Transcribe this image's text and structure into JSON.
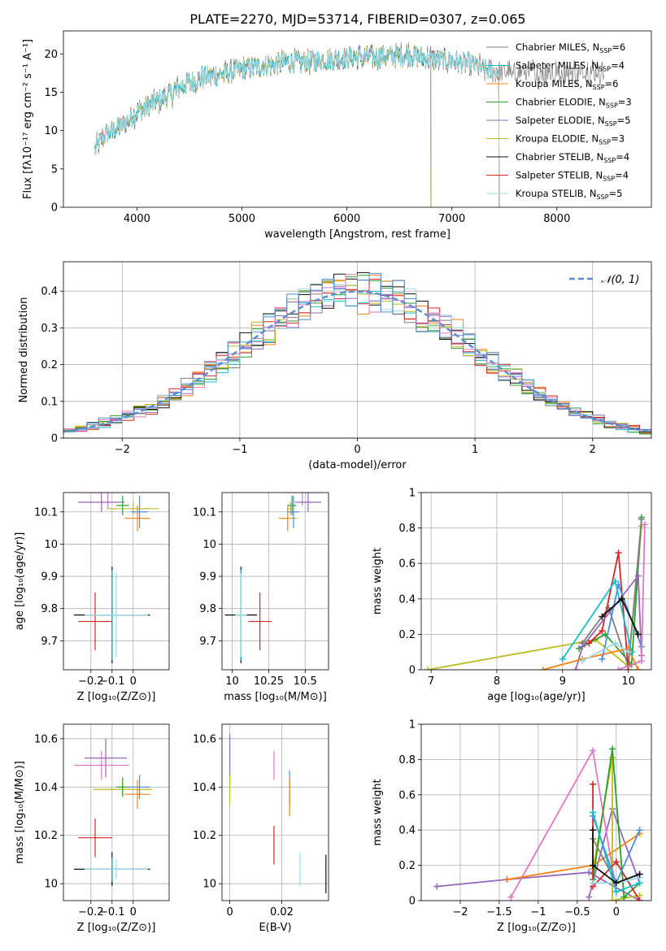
{
  "figure_title": "PLATE=2270, MJD=53714, FIBERID=0307, z=0.065",
  "colors": {
    "c_MILES": "#7f7f7f",
    "s_MILES": "#17becf",
    "k_MILES": "#ff7f0e",
    "c_ELODIE": "#2ca02c",
    "s_ELODIE": "#9467bd",
    "k_ELODIE": "#bcbd22",
    "c_STELIB": "#111111",
    "s_STELIB": "#d62728",
    "k_STELIB": "#9edae5",
    "pink": "#e377c2",
    "blue": "#4a90d9",
    "gaussian": "#5b8bd0"
  },
  "chart_data": [
    {
      "id": "spectrum",
      "type": "line",
      "xlabel": "wavelength [Angstrom, rest frame]",
      "ylabel": "Flux [fλ10⁻¹⁷ erg cm⁻² s⁻¹ A⁻¹]",
      "xlim": [
        3300,
        8900
      ],
      "ylim": [
        0,
        23
      ],
      "xticks": [
        4000,
        5000,
        6000,
        7000,
        8000
      ],
      "yticks": [
        0,
        5,
        10,
        15,
        20
      ],
      "grid": false,
      "legend_position": "lower-right",
      "continuum_x": [
        3600,
        3700,
        3850,
        4000,
        4150,
        4300,
        4450,
        4600,
        4800,
        5000,
        5200,
        5400,
        5600,
        5800,
        6000,
        6200,
        6400,
        6600,
        6800,
        7000,
        7200,
        7400
      ],
      "continuum_y": [
        7.5,
        9.5,
        10.5,
        12.5,
        13.5,
        14.5,
        16.0,
        16.8,
        17.3,
        18.0,
        18.4,
        18.8,
        19.0,
        19.3,
        19.5,
        19.6,
        19.7,
        19.8,
        19.4,
        19.0,
        18.5,
        17.6
      ],
      "series": [
        {
          "name": "Chabrier MILES, N$_{SSP}$=6",
          "label_main": "Chabrier MILES, N",
          "label_sub": "SSP",
          "label_tail": "=6",
          "color_key": "c_MILES",
          "x_end": 8450
        },
        {
          "name": "Salpeter MILES, N$_{SSP}$=4",
          "label_main": "Salpeter MILES, N",
          "label_sub": "SSP",
          "label_tail": "=4",
          "color_key": "s_MILES",
          "x_end": 7450
        },
        {
          "name": "Kroupa MILES, N$_{SSP}$=6",
          "label_main": "Kroupa MILES, N",
          "label_sub": "SSP",
          "label_tail": "=6",
          "color_key": "k_MILES",
          "x_end": 7450
        },
        {
          "name": "Chabrier ELODIE, N$_{SSP}$=3",
          "label_main": "Chabrier ELODIE, N",
          "label_sub": "SSP",
          "label_tail": "=3",
          "color_key": "c_ELODIE",
          "x_end": 6800
        },
        {
          "name": "Salpeter ELODIE, N$_{SSP}$=5",
          "label_main": "Salpeter ELODIE, N",
          "label_sub": "SSP",
          "label_tail": "=5",
          "color_key": "s_ELODIE",
          "x_end": 6800
        },
        {
          "name": "Kroupa ELODIE, N$_{SSP}$=3",
          "label_main": "Kroupa ELODIE, N",
          "label_sub": "SSP",
          "label_tail": "=3",
          "color_key": "k_ELODIE",
          "x_end": 6800
        },
        {
          "name": "Chabrier STELIB, N$_{SSP}$=4",
          "label_main": "Chabrier STELIB, N",
          "label_sub": "SSP",
          "label_tail": "=4",
          "color_key": "c_STELIB",
          "x_end": 7450
        },
        {
          "name": "Salpeter STELIB, N$_{SSP}$=4",
          "label_main": "Salpeter STELIB, N",
          "label_sub": "SSP",
          "label_tail": "=4",
          "color_key": "s_STELIB",
          "x_end": 7450
        },
        {
          "name": "Kroupa STELIB, N$_{SSP}$=5",
          "label_main": "Kroupa STELIB, N",
          "label_sub": "SSP",
          "label_tail": "=5",
          "color_key": "k_STELIB",
          "x_end": 7450
        }
      ]
    },
    {
      "id": "residuals",
      "type": "histogram",
      "xlabel": "(data-model)/error",
      "ylabel": "Normed distribution",
      "xlim": [
        -2.5,
        2.5
      ],
      "ylim": [
        0,
        0.48
      ],
      "xticks": [
        -2,
        -1,
        0,
        1,
        2
      ],
      "yticks": [
        0.0,
        0.1,
        0.2,
        0.3,
        0.4
      ],
      "grid": true,
      "legend_position": "upper-right",
      "gaussian_label": "𝒩(0, 1)",
      "bin_width": 0.1,
      "series_colors": [
        "c_MILES",
        "s_MILES",
        "k_MILES",
        "c_ELODIE",
        "s_ELODIE",
        "k_ELODIE",
        "c_STELIB",
        "s_STELIB",
        "k_STELIB",
        "pink",
        "blue"
      ]
    },
    {
      "id": "age_vs_Z",
      "type": "scatter",
      "xlabel": "Z [log₁₀(Z/Z⊙)]",
      "ylabel": "age  [log₁₀(age/yr)]",
      "xlim": [
        -0.33,
        0.17
      ],
      "ylim": [
        9.61,
        10.16
      ],
      "xticks": [
        -0.2,
        -0.1,
        0.0
      ],
      "yticks": [
        9.7,
        9.8,
        9.9,
        10.0,
        10.1
      ],
      "grid": true,
      "points": [
        {
          "color_key": "pink",
          "x": -0.12,
          "y": 10.16,
          "xerr": 0.14,
          "yerr": 0.05
        },
        {
          "color_key": "s_ELODIE",
          "x": -0.15,
          "y": 10.13,
          "xerr": 0.11,
          "yerr": 0.03
        },
        {
          "color_key": "k_ELODIE",
          "x": 0.0,
          "y": 10.11,
          "xerr": 0.12,
          "yerr": 0.02
        },
        {
          "color_key": "c_ELODIE",
          "x": -0.05,
          "y": 10.12,
          "xerr": 0.03,
          "yerr": 0.03
        },
        {
          "color_key": "k_MILES",
          "x": 0.02,
          "y": 10.08,
          "xerr": 0.06,
          "yerr": 0.04
        },
        {
          "color_key": "blue",
          "x": 0.03,
          "y": 10.1,
          "xerr": 0.04,
          "yerr": 0.05
        },
        {
          "color_key": "c_STELIB",
          "x": -0.1,
          "y": 9.78,
          "xerr": 0.18,
          "yerr": 0.15
        },
        {
          "color_key": "s_STELIB",
          "x": -0.18,
          "y": 9.76,
          "xerr": 0.08,
          "yerr": 0.09
        },
        {
          "color_key": "s_MILES",
          "x": -0.1,
          "y": 9.78,
          "xerr": 0.08,
          "yerr": 0.14
        },
        {
          "color_key": "k_STELIB",
          "x": -0.08,
          "y": 9.78,
          "xerr": 0.15,
          "yerr": 0.13
        }
      ]
    },
    {
      "id": "age_vs_mass",
      "type": "scatter",
      "xlabel": "mass [log₁₀(M/M⊙)]",
      "ylabel": "",
      "xlim": [
        9.93,
        10.66
      ],
      "ylim": [
        9.61,
        10.16
      ],
      "xticks": [
        10.0,
        10.25,
        10.5
      ],
      "yticks": [
        9.7,
        9.8,
        9.9,
        10.0,
        10.1
      ],
      "grid": true,
      "points": [
        {
          "color_key": "pink",
          "x": 10.48,
          "y": 10.16,
          "xerr": 0.12,
          "yerr": 0.04
        },
        {
          "color_key": "s_ELODIE",
          "x": 10.52,
          "y": 10.13,
          "xerr": 0.09,
          "yerr": 0.03
        },
        {
          "color_key": "c_ELODIE",
          "x": 10.41,
          "y": 10.12,
          "xerr": 0.03,
          "yerr": 0.03
        },
        {
          "color_key": "k_MILES",
          "x": 10.38,
          "y": 10.08,
          "xerr": 0.06,
          "yerr": 0.04
        },
        {
          "color_key": "blue",
          "x": 10.42,
          "y": 10.1,
          "xerr": 0.04,
          "yerr": 0.05
        },
        {
          "color_key": "k_ELODIE",
          "x": 10.4,
          "y": 10.11,
          "xerr": 0.02,
          "yerr": 0.02
        },
        {
          "color_key": "c_STELIB",
          "x": 10.06,
          "y": 9.78,
          "xerr": 0.11,
          "yerr": 0.15
        },
        {
          "color_key": "s_STELIB",
          "x": 10.19,
          "y": 9.76,
          "xerr": 0.08,
          "yerr": 0.09
        },
        {
          "color_key": "s_MILES",
          "x": 10.06,
          "y": 9.78,
          "xerr": 0.03,
          "yerr": 0.14
        },
        {
          "color_key": "k_STELIB",
          "x": 10.06,
          "y": 9.78,
          "xerr": 0.04,
          "yerr": 0.13
        }
      ]
    },
    {
      "id": "weight_vs_age",
      "type": "line",
      "xlabel": "age  [log₁₀(age/yr)]",
      "ylabel": "mass weight",
      "xlim": [
        6.85,
        10.35
      ],
      "ylim": [
        0,
        1
      ],
      "xticks": [
        7,
        8,
        9,
        10
      ],
      "yticks": [
        0.0,
        0.2,
        0.4,
        0.6,
        0.8,
        1.0
      ],
      "grid": true,
      "series": [
        {
          "color_key": "k_ELODIE",
          "x": [
            6.95,
            9.5,
            10.0,
            10.2
          ],
          "y": [
            0.0,
            0.17,
            0.02,
            0.81
          ]
        },
        {
          "color_key": "c_ELODIE",
          "x": [
            9.25,
            9.65,
            10.05,
            10.2
          ],
          "y": [
            0.12,
            0.2,
            0.03,
            0.86
          ]
        },
        {
          "color_key": "c_MILES",
          "x": [
            9.3,
            9.7,
            10.0,
            10.2
          ],
          "y": [
            0.15,
            0.35,
            0.02,
            0.85
          ]
        },
        {
          "color_key": "s_STELIB",
          "x": [
            9.4,
            9.6,
            9.85,
            10.0
          ],
          "y": [
            0.15,
            0.22,
            0.66,
            0.0
          ]
        },
        {
          "color_key": "s_ELODIE",
          "x": [
            9.2,
            9.3,
            10.15,
            10.2
          ],
          "y": [
            0.0,
            0.13,
            0.53,
            0.08
          ]
        },
        {
          "color_key": "k_MILES",
          "x": [
            8.7,
            9.3,
            10.0,
            10.15
          ],
          "y": [
            0.0,
            0.06,
            0.12,
            0.0
          ]
        },
        {
          "color_key": "blue",
          "x": [
            9.6,
            9.85,
            10.2
          ],
          "y": [
            0.06,
            0.48,
            0.13
          ]
        },
        {
          "color_key": "s_MILES",
          "x": [
            9.0,
            9.8,
            10.05
          ],
          "y": [
            0.06,
            0.5,
            0.1
          ]
        },
        {
          "color_key": "k_STELIB",
          "x": [
            9.3,
            9.8,
            10.0
          ],
          "y": [
            0.05,
            0.15,
            0.1
          ]
        },
        {
          "color_key": "pink",
          "x": [
            9.85,
            10.2,
            10.25
          ],
          "y": [
            0.0,
            0.05,
            0.82
          ]
        },
        {
          "color_key": "c_STELIB",
          "x": [
            9.6,
            9.9,
            10.15
          ],
          "y": [
            0.3,
            0.4,
            0.2
          ]
        }
      ]
    },
    {
      "id": "mass_vs_Z",
      "type": "scatter",
      "xlabel": "Z [log₁₀(Z/Z⊙)]",
      "ylabel": "mass [log₁₀(M/M⊙)]",
      "xlim": [
        -0.33,
        0.17
      ],
      "ylim": [
        9.93,
        10.66
      ],
      "xticks": [
        -0.2,
        -0.1,
        0.0
      ],
      "yticks": [
        10.0,
        10.2,
        10.4,
        10.6
      ],
      "grid": true,
      "points": [
        {
          "color_key": "s_ELODIE",
          "x": -0.13,
          "y": 10.52,
          "xerr": 0.1,
          "yerr": 0.08
        },
        {
          "color_key": "pink",
          "x": -0.15,
          "y": 10.49,
          "xerr": 0.13,
          "yerr": 0.06
        },
        {
          "color_key": "k_ELODIE",
          "x": -0.05,
          "y": 10.39,
          "xerr": 0.14,
          "yerr": 0.03
        },
        {
          "color_key": "c_ELODIE",
          "x": -0.05,
          "y": 10.4,
          "xerr": 0.03,
          "yerr": 0.04
        },
        {
          "color_key": "k_MILES",
          "x": 0.02,
          "y": 10.37,
          "xerr": 0.06,
          "yerr": 0.06
        },
        {
          "color_key": "blue",
          "x": 0.03,
          "y": 10.4,
          "xerr": 0.05,
          "yerr": 0.05
        },
        {
          "color_key": "s_STELIB",
          "x": -0.18,
          "y": 10.19,
          "xerr": 0.08,
          "yerr": 0.08
        },
        {
          "color_key": "c_STELIB",
          "x": -0.1,
          "y": 10.06,
          "xerr": 0.18,
          "yerr": 0.07
        },
        {
          "color_key": "s_MILES",
          "x": -0.1,
          "y": 10.06,
          "xerr": 0.08,
          "yerr": 0.05
        },
        {
          "color_key": "k_STELIB",
          "x": -0.08,
          "y": 10.06,
          "xerr": 0.15,
          "yerr": 0.04
        }
      ]
    },
    {
      "id": "mass_vs_EBV",
      "type": "scatter",
      "xlabel": "E(B-V)",
      "ylabel": "",
      "xlim": [
        -0.003,
        0.038
      ],
      "ylim": [
        9.93,
        10.66
      ],
      "xticks": [
        0.0,
        0.02
      ],
      "yticks": [
        10.0,
        10.2,
        10.4,
        10.6
      ],
      "grid": true,
      "points": [
        {
          "color_key": "s_ELODIE",
          "x": 0.0,
          "y": 10.52,
          "xerr": 0,
          "yerr": 0.1
        },
        {
          "color_key": "k_ELODIE",
          "x": 0.0,
          "y": 10.39,
          "xerr": 0,
          "yerr": 0.06
        },
        {
          "color_key": "pink",
          "x": 0.017,
          "y": 10.49,
          "xerr": 0,
          "yerr": 0.06
        },
        {
          "color_key": "blue",
          "x": 0.023,
          "y": 10.4,
          "xerr": 0,
          "yerr": 0.07
        },
        {
          "color_key": "k_MILES",
          "x": 0.023,
          "y": 10.36,
          "xerr": 0,
          "yerr": 0.08
        },
        {
          "color_key": "s_STELIB",
          "x": 0.017,
          "y": 10.16,
          "xerr": 0,
          "yerr": 0.08
        },
        {
          "color_key": "k_STELIB",
          "x": 0.027,
          "y": 10.06,
          "xerr": 0,
          "yerr": 0.07
        },
        {
          "color_key": "c_STELIB",
          "x": 0.037,
          "y": 10.04,
          "xerr": 0,
          "yerr": 0.08
        }
      ]
    },
    {
      "id": "weight_vs_Z",
      "type": "line",
      "xlabel": "Z [log₁₀(Z/Z⊙)]",
      "ylabel": "mass weight",
      "xlim": [
        -2.5,
        0.45
      ],
      "ylim": [
        0,
        1
      ],
      "xticks": [
        -2.0,
        -1.5,
        -1.0,
        -0.5,
        0.0
      ],
      "yticks": [
        0.0,
        0.2,
        0.4,
        0.6,
        0.8,
        1.0
      ],
      "grid": true,
      "series": [
        {
          "color_key": "s_ELODIE",
          "x": [
            -2.3,
            -1.4,
            -0.35,
            0.3
          ],
          "y": [
            0.08,
            0.12,
            0.16,
            0.0
          ]
        },
        {
          "color_key": "s_ELODIE",
          "x": [
            -0.35,
            -0.05,
            0.3
          ],
          "y": [
            0.02,
            0.52,
            0.1
          ]
        },
        {
          "color_key": "pink",
          "x": [
            -1.35,
            -0.3,
            0.0
          ],
          "y": [
            0.02,
            0.85,
            0.05
          ]
        },
        {
          "color_key": "k_MILES",
          "x": [
            -1.4,
            -0.3,
            0.3
          ],
          "y": [
            0.12,
            0.2,
            0.38
          ]
        },
        {
          "color_key": "k_ELODIE",
          "x": [
            -0.3,
            -0.05,
            -0.05,
            0.3
          ],
          "y": [
            0.18,
            0.81,
            0.0,
            0.03
          ]
        },
        {
          "color_key": "c_ELODIE",
          "x": [
            -0.3,
            -0.05,
            0.1,
            0.3
          ],
          "y": [
            0.12,
            0.86,
            0.02,
            0.1
          ]
        },
        {
          "color_key": "c_MILES",
          "x": [
            -0.3,
            0.0,
            0.3
          ],
          "y": [
            0.35,
            0.1,
            0.15
          ]
        },
        {
          "color_key": "s_STELIB",
          "x": [
            -0.3,
            -0.3,
            0.0,
            0.3
          ],
          "y": [
            0.66,
            0.08,
            0.22,
            0.0
          ]
        },
        {
          "color_key": "blue",
          "x": [
            -0.3,
            0.0,
            0.3
          ],
          "y": [
            0.48,
            0.1,
            0.4
          ]
        },
        {
          "color_key": "s_MILES",
          "x": [
            -0.3,
            0.0,
            0.3
          ],
          "y": [
            0.5,
            0.05,
            0.1
          ]
        },
        {
          "color_key": "k_STELIB",
          "x": [
            -0.3,
            0.0,
            0.3
          ],
          "y": [
            0.1,
            0.1,
            0.13
          ]
        },
        {
          "color_key": "c_STELIB",
          "x": [
            -0.3,
            -0.3,
            0.0,
            0.3
          ],
          "y": [
            0.4,
            0.2,
            0.1,
            0.15
          ]
        }
      ]
    }
  ]
}
